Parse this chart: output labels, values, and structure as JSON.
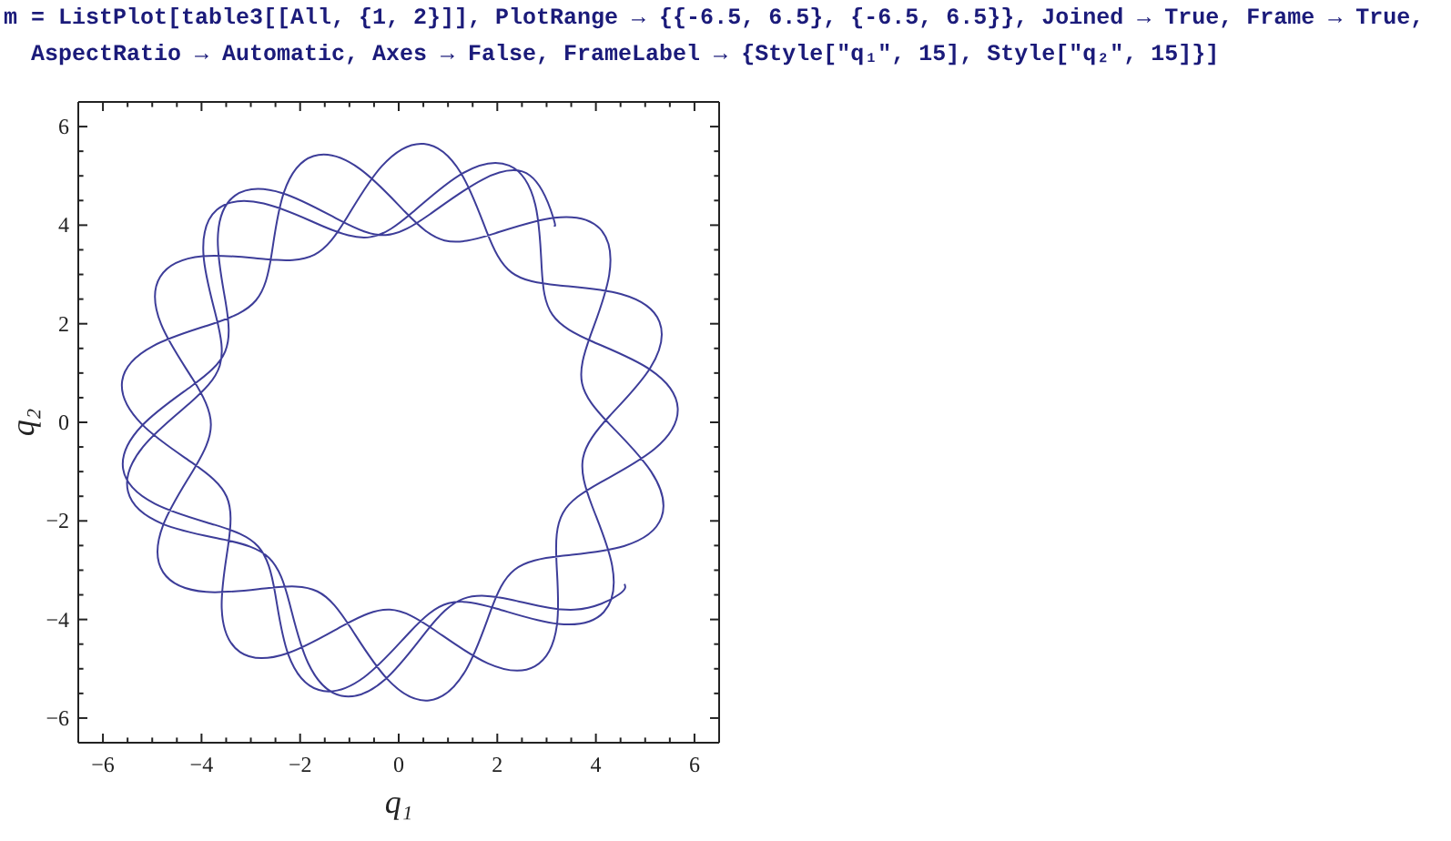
{
  "chart_data": {
    "type": "line",
    "annotations": [
      "m = ListPlot[table3[[All, {1, 2}]], PlotRange → {{-6.5, 6.5}, {-6.5, 6.5}}, Joined → True, Frame → True, AspectRatio → Automatic, Axes → False, FrameLabel → {Style[\"q₁\", 15], Style[\"q₂\", 15]}]"
    ],
    "xlabel": "q₁",
    "ylabel": "q₂",
    "color": "#3d3d99",
    "xlim": [
      -6.5,
      6.5
    ],
    "ylim": [
      -6.5,
      6.5
    ],
    "xticks": [
      {
        "value": -6,
        "label": "−6"
      },
      {
        "value": -5.5,
        "label": null
      },
      {
        "value": -5,
        "label": null
      },
      {
        "value": -4.5,
        "label": null
      },
      {
        "value": -4,
        "label": "−4"
      },
      {
        "value": -3.5,
        "label": null
      },
      {
        "value": -3,
        "label": null
      },
      {
        "value": -2.5,
        "label": null
      },
      {
        "value": -2,
        "label": "−2"
      },
      {
        "value": -1.5,
        "label": null
      },
      {
        "value": -1,
        "label": null
      },
      {
        "value": -0.5,
        "label": null
      },
      0,
      {
        "value": 0.5,
        "label": null
      },
      {
        "value": 1,
        "label": null
      },
      {
        "value": 1.5,
        "label": null
      },
      2,
      {
        "value": 2.5,
        "label": null
      },
      {
        "value": 3,
        "label": null
      },
      {
        "value": 3.5,
        "label": null
      },
      4,
      {
        "value": 4.5,
        "label": null
      },
      {
        "value": 5,
        "label": null
      },
      {
        "value": 5.5,
        "label": null
      },
      6
    ],
    "yticks": [
      {
        "value": -6,
        "label": "−6"
      },
      {
        "value": -5.5,
        "label": null
      },
      {
        "value": -5,
        "label": null
      },
      {
        "value": -4.5,
        "label": null
      },
      {
        "value": -4,
        "label": "−4"
      },
      {
        "value": -3.5,
        "label": null
      },
      {
        "value": -3,
        "label": null
      },
      {
        "value": -2.5,
        "label": null
      },
      {
        "value": -2,
        "label": "−2"
      },
      {
        "value": -1.5,
        "label": null
      },
      {
        "value": -1,
        "label": null
      },
      {
        "value": -0.5,
        "label": null
      },
      0,
      {
        "value": 0.5,
        "label": null
      },
      {
        "value": 1,
        "label": null
      },
      {
        "value": 1.5,
        "label": null
      },
      2,
      {
        "value": 2.5,
        "label": null
      },
      {
        "value": 3,
        "label": null
      },
      {
        "value": 3.5,
        "label": null
      },
      4,
      {
        "value": 4.5,
        "label": null
      },
      {
        "value": 5,
        "label": null
      },
      {
        "value": 5.5,
        "label": null
      },
      6
    ],
    "x": [
      3.15,
      3.13,
      2.66,
      1.71,
      0.63,
      -0.26,
      -1.2,
      -2.36,
      -3.32,
      -3.67,
      -3.51,
      -3.52,
      -4.21,
      -5.21,
      -5.59,
      -4.95,
      -3.73,
      -2.85,
      -2.51,
      -2.24,
      -1.62,
      -0.7,
      0.22,
      1.01,
      1.99,
      3.24,
      4.16,
      4.33,
      3.92,
      3.74,
      4.27,
      5.1,
      5.29,
      4.52,
      3.24,
      2.29,
      1.78,
      1.26,
      0.51,
      -0.34,
      -1.06,
      -1.71,
      -2.7,
      -3.98,
      -4.84,
      -4.82,
      -4.18,
      -3.81,
      -4.16,
      -4.78,
      -4.78,
      -3.91,
      -2.63,
      -1.65,
      -0.98,
      -0.23,
      0.62,
      1.36,
      1.86,
      2.35,
      3.3,
      4.57,
      5.33,
      5.12,
      4.27,
      3.72,
      3.89,
      4.27,
      4.08,
      3.15,
      1.91,
      0.93,
      0.13,
      -0.8,
      -1.73,
      -2.33,
      -2.58,
      -2.9,
      -3.77,
      -4.98,
      -5.61,
      -5.21,
      -4.19,
      -3.49,
      -3.46,
      -3.59,
      -3.22,
      -2.27,
      -1.12,
      -0.18,
      0.72,
      1.81,
      2.76,
      3.21,
      3.2,
      3.33,
      4.09,
      5.19,
      5.66,
      5.1,
      3.95,
      3.12,
      2.9,
      2.77,
      2.24,
      1.29,
      0.28,
      -0.57,
      -1.54,
      -2.74,
      -3.69,
      -3.96,
      -3.7,
      -3.63,
      -4.25,
      -5.19,
      -5.49,
      -4.79,
      -3.54,
      -2.63,
      -2.22,
      -1.84,
      -1.16,
      -0.27,
      0.57,
      1.31,
      2.29,
      3.57,
      4.47,
      4.58
    ],
    "values": [
      4.0,
      4.17,
      5.01,
      4.93,
      4.22,
      3.8,
      4.1,
      4.65,
      4.6,
      3.71,
      2.43,
      1.44,
      0.73,
      -0.07,
      -0.95,
      -1.65,
      -2.08,
      -2.52,
      -3.45,
      -4.71,
      -5.43,
      -5.17,
      -4.26,
      -3.67,
      -3.78,
      -4.09,
      -3.85,
      -2.91,
      -1.69,
      -0.72,
      0.12,
      1.1,
      2.04,
      2.6,
      2.78,
      3.04,
      3.88,
      5.06,
      5.65,
      5.2,
      4.14,
      3.4,
      3.31,
      3.37,
      2.95,
      1.99,
      0.88,
      -0.04,
      -0.96,
      -2.09,
      -3.04,
      -3.44,
      -3.36,
      -3.43,
      -4.16,
      -5.21,
      -5.64,
      -5.03,
      -3.84,
      -2.99,
      -2.71,
      -2.51,
      -1.93,
      -1.0,
      -0.03,
      0.79,
      1.76,
      2.99,
      3.93,
      4.15,
      3.82,
      3.69,
      4.27,
      5.15,
      5.4,
      4.66,
      3.4,
      2.47,
      2.0,
      1.55,
      0.84,
      -0.04,
      -0.82,
      -1.51,
      -2.5,
      -3.78,
      -4.66,
      -4.69,
      -4.12,
      -3.8,
      -4.21,
      -4.89,
      -4.95,
      -4.11,
      -2.82,
      -1.84,
      -1.22,
      -0.54,
      0.29,
      1.07,
      1.63,
      2.18,
      3.14,
      4.42,
      5.21,
      5.05,
      4.26,
      3.76,
      3.98,
      4.44,
      4.31,
      3.39,
      2.13,
      1.15,
      0.38,
      -0.5,
      -1.41,
      -2.06,
      -2.38,
      -2.75,
      -3.65,
      -4.88,
      -5.55,
      -5.21,
      -4.23,
      -3.58,
      -3.6,
      -3.8,
      -3.49,
      -3.28
    ]
  }
}
